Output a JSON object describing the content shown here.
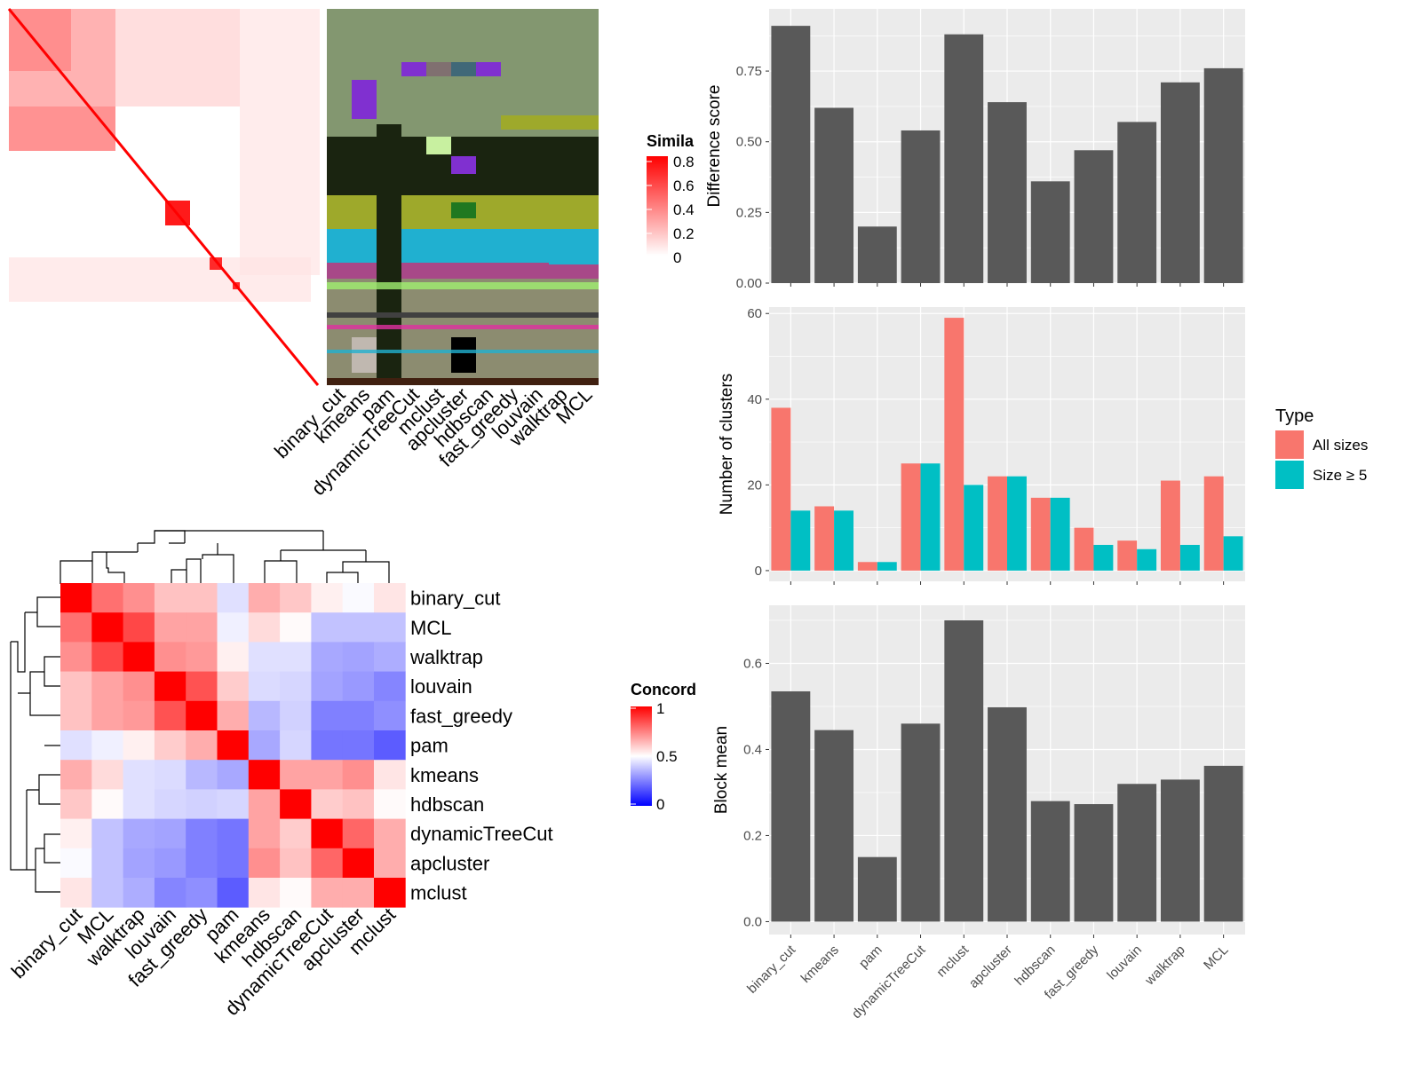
{
  "colors": {
    "panel_bg": "#ebebeb",
    "bar_gray": "#595959",
    "all_sizes": "#f8766d",
    "size_ge5": "#00bfc4",
    "sim_high": "#ff0000",
    "conc_high": "#ff0000",
    "conc_mid": "#ffffff",
    "conc_low": "#0000ff"
  },
  "similarity_legend": {
    "title": "Simila",
    "ticks": [
      "0.8",
      "0.6",
      "0.4",
      "0.2",
      "0"
    ]
  },
  "concordance_legend": {
    "title": "Concord",
    "ticks": [
      "1",
      "0.5",
      "0"
    ]
  },
  "membership_columns": [
    "binary_cut",
    "kmeans",
    "pam",
    "dynamicTreeCut",
    "mclust",
    "apcluster",
    "hdbscan",
    "fast_greedy",
    "louvain",
    "walktrap",
    "MCL"
  ],
  "concordance": {
    "rows": [
      "binary_cut",
      "MCL",
      "walktrap",
      "louvain",
      "fast_greedy",
      "pam",
      "kmeans",
      "hdbscan",
      "dynamicTreeCut",
      "apcluster",
      "mclust"
    ],
    "cols": [
      "binary_cut",
      "MCL",
      "walktrap",
      "louvain",
      "fast_greedy",
      "pam",
      "kmeans",
      "hdbscan",
      "dynamicTreeCut",
      "apcluster",
      "mclust"
    ],
    "values": [
      [
        1.0,
        0.78,
        0.72,
        0.62,
        0.62,
        0.44,
        0.66,
        0.61,
        0.53,
        0.49,
        0.55
      ],
      [
        0.78,
        1.0,
        0.86,
        0.68,
        0.68,
        0.47,
        0.57,
        0.51,
        0.38,
        0.38,
        0.38
      ],
      [
        0.72,
        0.86,
        1.0,
        0.72,
        0.7,
        0.53,
        0.44,
        0.44,
        0.33,
        0.32,
        0.34
      ],
      [
        0.62,
        0.68,
        0.72,
        1.0,
        0.84,
        0.6,
        0.43,
        0.42,
        0.32,
        0.3,
        0.26
      ],
      [
        0.62,
        0.68,
        0.7,
        0.84,
        1.0,
        0.66,
        0.36,
        0.41,
        0.25,
        0.25,
        0.28
      ],
      [
        0.44,
        0.47,
        0.53,
        0.6,
        0.66,
        1.0,
        0.33,
        0.42,
        0.23,
        0.23,
        0.18
      ],
      [
        0.66,
        0.57,
        0.44,
        0.43,
        0.36,
        0.33,
        1.0,
        0.68,
        0.68,
        0.72,
        0.55
      ],
      [
        0.61,
        0.51,
        0.44,
        0.42,
        0.41,
        0.42,
        0.68,
        1.0,
        0.6,
        0.62,
        0.51
      ],
      [
        0.53,
        0.38,
        0.33,
        0.32,
        0.25,
        0.23,
        0.68,
        0.6,
        1.0,
        0.8,
        0.66
      ],
      [
        0.49,
        0.38,
        0.32,
        0.3,
        0.25,
        0.23,
        0.72,
        0.62,
        0.8,
        1.0,
        0.66
      ],
      [
        0.55,
        0.38,
        0.34,
        0.26,
        0.28,
        0.18,
        0.55,
        0.51,
        0.66,
        0.66,
        1.0
      ]
    ]
  },
  "chart_data": [
    {
      "type": "bar",
      "categories": [
        "binary_cut",
        "kmeans",
        "pam",
        "dynamicTreeCut",
        "mclust",
        "apcluster",
        "hdbscan",
        "fast_greedy",
        "louvain",
        "walktrap",
        "MCL"
      ],
      "values": [
        0.91,
        0.62,
        0.2,
        0.54,
        0.88,
        0.64,
        0.36,
        0.47,
        0.57,
        0.71,
        0.76
      ],
      "ylabel": "Difference score",
      "ylim": [
        0,
        0.97
      ],
      "yticks": [
        "0.00",
        "0.25",
        "0.50",
        "0.75"
      ],
      "grid": true
    },
    {
      "type": "bar",
      "categories": [
        "binary_cut",
        "kmeans",
        "pam",
        "dynamicTreeCut",
        "mclust",
        "apcluster",
        "hdbscan",
        "fast_greedy",
        "louvain",
        "walktrap",
        "MCL"
      ],
      "series": [
        {
          "name": "All sizes",
          "values": [
            38,
            15,
            2,
            25,
            59,
            22,
            17,
            10,
            7,
            21,
            22
          ]
        },
        {
          "name": "Size ≥ 5",
          "values": [
            14,
            14,
            2,
            25,
            20,
            22,
            17,
            6,
            5,
            6,
            8
          ]
        }
      ],
      "ylabel": "Number of clusters",
      "ylim": [
        -2.5,
        61.5
      ],
      "yticks": [
        "0",
        "20",
        "40",
        "60"
      ],
      "legend": {
        "title": "Type",
        "position": "right"
      },
      "grid": true
    },
    {
      "type": "bar",
      "categories": [
        "binary_cut",
        "kmeans",
        "pam",
        "dynamicTreeCut",
        "mclust",
        "apcluster",
        "hdbscan",
        "fast_greedy",
        "louvain",
        "walktrap",
        "MCL"
      ],
      "values": [
        0.535,
        0.445,
        0.15,
        0.46,
        0.7,
        0.498,
        0.28,
        0.273,
        0.32,
        0.33,
        0.362
      ],
      "ylabel": "Block mean",
      "ylim": [
        -0.03,
        0.735
      ],
      "yticks": [
        "0.0",
        "0.2",
        "0.4",
        "0.6"
      ],
      "grid": true
    }
  ]
}
